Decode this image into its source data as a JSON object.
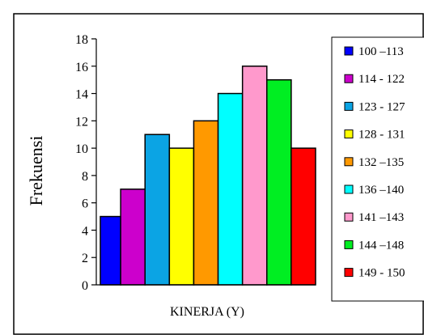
{
  "chart_data": {
    "type": "bar",
    "categories": [
      "100 –113",
      "114 - 122",
      "123 - 127",
      "128 - 131",
      "132 –135",
      "136 –140",
      "141 –143",
      "144 –148",
      "149 - 150"
    ],
    "values": [
      5,
      7,
      11,
      10,
      12,
      14,
      16,
      15,
      10
    ],
    "colors": [
      "#0000ff",
      "#cc00cc",
      "#0ba4e4",
      "#ffff00",
      "#ff9900",
      "#00ffff",
      "#ff99cc",
      "#00ee22",
      "#ff0000"
    ],
    "title": "",
    "xlabel": "KINERJA (Y)",
    "ylabel": "Frekuensi",
    "ylim": [
      0,
      18
    ],
    "yticks": [
      0,
      2,
      4,
      6,
      8,
      10,
      12,
      14,
      16,
      18
    ],
    "ytick_labels": [
      "0",
      "2",
      "4",
      "6",
      "8",
      "10",
      "12",
      "14",
      "16",
      "18"
    ],
    "grid": false,
    "legend_position": "right"
  }
}
